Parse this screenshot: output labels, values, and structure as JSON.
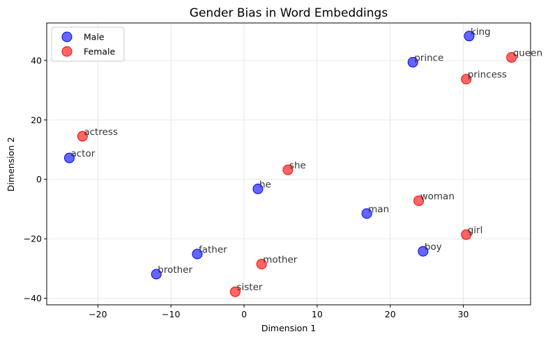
{
  "chart_data": {
    "type": "scatter",
    "title": "Gender Bias in Word Embeddings",
    "xlabel": "Dimension 1",
    "ylabel": "Dimension 2",
    "xlim": [
      -27,
      39.2
    ],
    "ylim": [
      -42.2,
      52.6
    ],
    "xticks": [
      -20,
      -10,
      0,
      10,
      20,
      30
    ],
    "yticks": [
      -40,
      -20,
      0,
      20,
      40
    ],
    "grid": true,
    "legend_position": "top-left",
    "series": [
      {
        "name": "Male",
        "color": "#0000ff",
        "points": [
          {
            "label": "king",
            "x": 30.8,
            "y": 48.2
          },
          {
            "label": "prince",
            "x": 23.1,
            "y": 39.4
          },
          {
            "label": "actor",
            "x": -23.9,
            "y": 7.2
          },
          {
            "label": "he",
            "x": 1.9,
            "y": -3.2
          },
          {
            "label": "man",
            "x": 16.8,
            "y": -11.5
          },
          {
            "label": "boy",
            "x": 24.5,
            "y": -24.2
          },
          {
            "label": "father",
            "x": -6.4,
            "y": -25.1
          },
          {
            "label": "brother",
            "x": -12.0,
            "y": -31.9
          }
        ]
      },
      {
        "name": "Female",
        "color": "#ff0000",
        "points": [
          {
            "label": "queen",
            "x": 36.6,
            "y": 41.0
          },
          {
            "label": "princess",
            "x": 30.4,
            "y": 33.7
          },
          {
            "label": "actress",
            "x": -22.1,
            "y": 14.5
          },
          {
            "label": "she",
            "x": 6.0,
            "y": 3.2
          },
          {
            "label": "woman",
            "x": 23.9,
            "y": -7.2
          },
          {
            "label": "girl",
            "x": 30.4,
            "y": -18.6
          },
          {
            "label": "mother",
            "x": 2.4,
            "y": -28.5
          },
          {
            "label": "sister",
            "x": -1.2,
            "y": -37.8
          }
        ]
      }
    ]
  }
}
